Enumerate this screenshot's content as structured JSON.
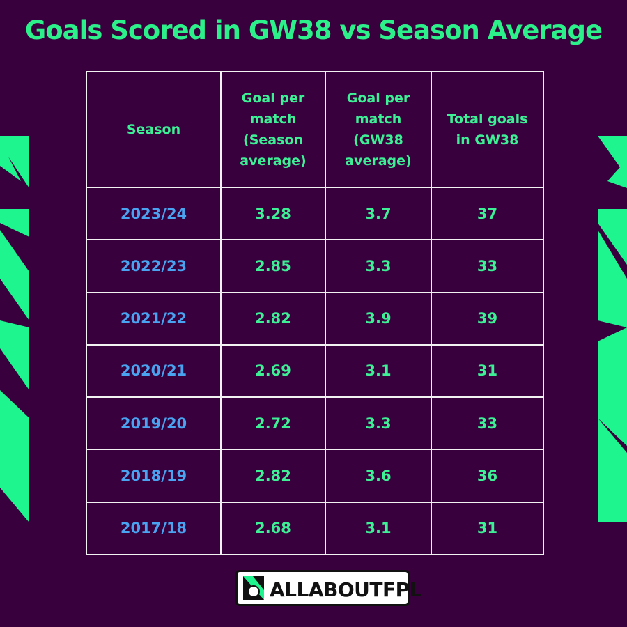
{
  "title": "Goals Scored in GW38 vs Season Average",
  "table": {
    "header": [
      "Season",
      "Goal per match (Season average)",
      "Goal per match (GW38 average)",
      "Total goals in GW38"
    ],
    "rows": [
      [
        "2023/24",
        "3.28",
        "3.7",
        "37"
      ],
      [
        "2022/23",
        "2.85",
        "3.3",
        "33"
      ],
      [
        "2021/22",
        "2.82",
        "3.9",
        "39"
      ],
      [
        "2020/21",
        "2.69",
        "3.1",
        "31"
      ],
      [
        "2019/20",
        "2.72",
        "3.3",
        "33"
      ],
      [
        "2018/19",
        "2.82",
        "3.6",
        "36"
      ],
      [
        "2017/18",
        "2.68",
        "3.1",
        "31"
      ]
    ]
  },
  "logo": {
    "text": "ALLABOUTFPL"
  }
}
